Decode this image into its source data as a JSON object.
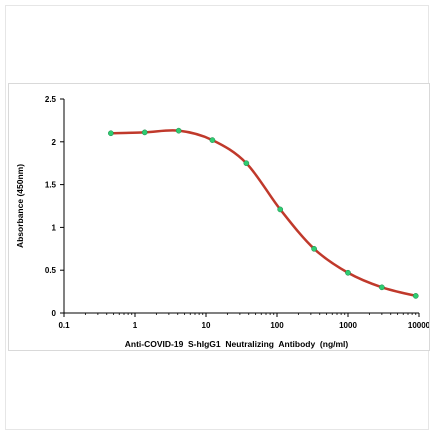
{
  "chart_data": {
    "type": "line",
    "title": "",
    "xlabel": "Anti-COVID-19  S-hIgG1  Neutralizing  Antibody  (ng/ml)",
    "ylabel": "Absorbance (450nm)",
    "x_scale": "log",
    "xlim": [
      0.1,
      10000
    ],
    "ylim": [
      0,
      2.5
    ],
    "x_ticks": [
      "0.1",
      "1",
      "10",
      "100",
      "1000",
      "10000"
    ],
    "y_ticks": [
      "0",
      "0.5",
      "1",
      "1.5",
      "2",
      "2.5"
    ],
    "grid": false,
    "legend": "none",
    "series": [
      {
        "line_color": "#c0392b",
        "marker_color": "#2ecc71",
        "x": [
          0.457,
          1.37,
          4.12,
          12.3,
          37.0,
          111,
          333,
          1000,
          3000,
          9000
        ],
        "y": [
          2.1,
          2.11,
          2.13,
          2.02,
          1.75,
          1.21,
          0.75,
          0.47,
          0.3,
          0.2
        ]
      }
    ]
  }
}
